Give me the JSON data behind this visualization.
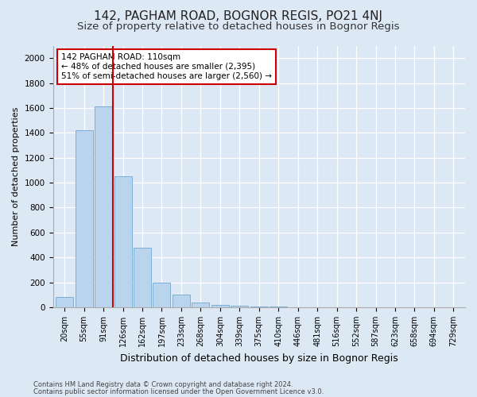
{
  "title": "142, PAGHAM ROAD, BOGNOR REGIS, PO21 4NJ",
  "subtitle": "Size of property relative to detached houses in Bognor Regis",
  "xlabel": "Distribution of detached houses by size in Bognor Regis",
  "ylabel": "Number of detached properties",
  "footnote1": "Contains HM Land Registry data © Crown copyright and database right 2024.",
  "footnote2": "Contains public sector information licensed under the Open Government Licence v3.0.",
  "bar_labels": [
    "20sqm",
    "55sqm",
    "91sqm",
    "126sqm",
    "162sqm",
    "197sqm",
    "233sqm",
    "268sqm",
    "304sqm",
    "339sqm",
    "375sqm",
    "410sqm",
    "446sqm",
    "481sqm",
    "516sqm",
    "552sqm",
    "587sqm",
    "623sqm",
    "658sqm",
    "694sqm",
    "729sqm"
  ],
  "bar_values": [
    80,
    1420,
    1610,
    1050,
    475,
    200,
    100,
    40,
    20,
    15,
    5,
    3,
    0,
    0,
    0,
    0,
    0,
    0,
    0,
    0,
    0
  ],
  "bar_color": "#bad4ee",
  "bar_edge_color": "#7bafd4",
  "vline_x": 2.5,
  "vline_color": "#cc0000",
  "annotation_text": "142 PAGHAM ROAD: 110sqm\n← 48% of detached houses are smaller (2,395)\n51% of semi-detached houses are larger (2,560) →",
  "annotation_box_color": "#ffffff",
  "annotation_border_color": "#cc0000",
  "ylim": [
    0,
    2100
  ],
  "yticks": [
    0,
    200,
    400,
    600,
    800,
    1000,
    1200,
    1400,
    1600,
    1800,
    2000
  ],
  "bg_color": "#dde8f5",
  "grid_color": "#ffffff",
  "title_fontsize": 11,
  "subtitle_fontsize": 9.5,
  "xlabel_fontsize": 9,
  "ylabel_fontsize": 8,
  "tick_fontsize": 7,
  "annotation_fontsize": 7.5,
  "footnote_fontsize": 6
}
